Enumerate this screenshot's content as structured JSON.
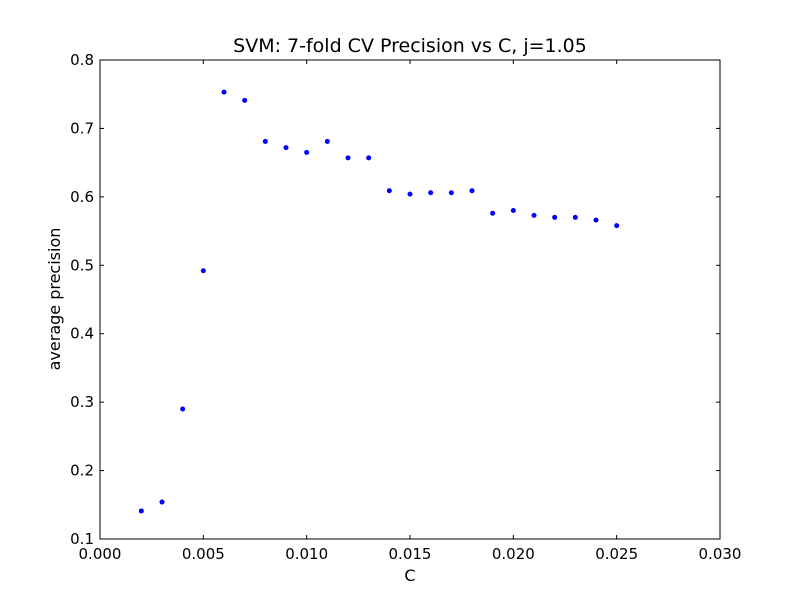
{
  "chart_data": {
    "type": "scatter",
    "title": "SVM: 7-fold CV Precision vs C, j=1.05",
    "xlabel": "C",
    "ylabel": "average precision",
    "xlim": [
      0.0,
      0.03
    ],
    "ylim": [
      0.1,
      0.8
    ],
    "xticks": [
      "0.000",
      "0.005",
      "0.010",
      "0.015",
      "0.020",
      "0.025",
      "0.030"
    ],
    "xtick_values": [
      0.0,
      0.005,
      0.01,
      0.015,
      0.02,
      0.025,
      0.03
    ],
    "yticks": [
      "0.1",
      "0.2",
      "0.3",
      "0.4",
      "0.5",
      "0.6",
      "0.7",
      "0.8"
    ],
    "ytick_values": [
      0.1,
      0.2,
      0.3,
      0.4,
      0.5,
      0.6,
      0.7,
      0.8
    ],
    "grid": false,
    "legend": "none",
    "marker_color": "#0000ff",
    "series": [
      {
        "x": [
          0.002,
          0.003,
          0.004,
          0.005,
          0.006,
          0.007,
          0.008,
          0.009,
          0.01,
          0.011,
          0.012,
          0.013,
          0.014,
          0.015,
          0.016,
          0.017,
          0.018,
          0.019,
          0.02,
          0.021,
          0.022,
          0.023,
          0.024,
          0.025
        ],
        "y": [
          0.141,
          0.154,
          0.29,
          0.492,
          0.753,
          0.741,
          0.681,
          0.672,
          0.665,
          0.681,
          0.657,
          0.657,
          0.609,
          0.604,
          0.606,
          0.606,
          0.609,
          0.576,
          0.58,
          0.573,
          0.57,
          0.57,
          0.566,
          0.558
        ]
      }
    ]
  }
}
